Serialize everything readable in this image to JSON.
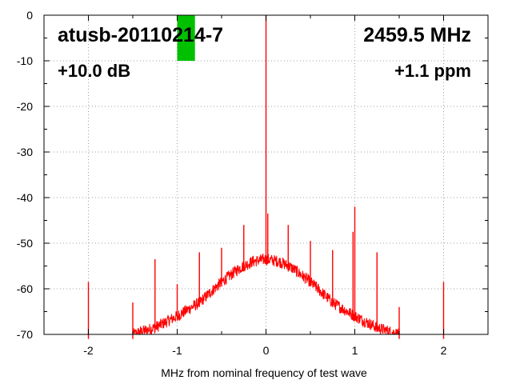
{
  "chart_data": {
    "type": "line",
    "xlabel": "MHz from nominal frequency of test wave",
    "ylabel": "",
    "xlim": [
      -2.5,
      2.5
    ],
    "ylim": [
      -70,
      0
    ],
    "x_ticks": [
      -2,
      -1,
      0,
      1,
      2
    ],
    "y_ticks": [
      0,
      -10,
      -20,
      -30,
      -40,
      -50,
      -60,
      -70
    ],
    "grid": true,
    "grid_style": "dotted",
    "series_color": "#ff0000",
    "annotations": {
      "device": "atusb-20110214-7",
      "frequency": "2459.5 MHz",
      "level": "+10.0 dB",
      "deviation": "+1.1 ppm"
    },
    "marker_box": {
      "color": "#00c000",
      "x_range": [
        -1.0,
        -0.8
      ],
      "y_range": [
        -10,
        0
      ]
    },
    "noise_floor_profile": {
      "x": [
        -1.5,
        -1.25,
        -1.0,
        -0.75,
        -0.5,
        -0.3,
        -0.15,
        0.0,
        0.15,
        0.3,
        0.5,
        0.75,
        1.0,
        1.25,
        1.5
      ],
      "y": [
        -70,
        -68.5,
        -66,
        -63,
        -58.5,
        -55.5,
        -54,
        -53.5,
        -54,
        -55.5,
        -58.5,
        -63,
        -66,
        -68.5,
        -70
      ]
    },
    "spurs": [
      {
        "x": -2.0,
        "y": -58.5
      },
      {
        "x": -1.5,
        "y": -63
      },
      {
        "x": -1.25,
        "y": -53.5
      },
      {
        "x": -1.0,
        "y": -59
      },
      {
        "x": -0.75,
        "y": -52
      },
      {
        "x": -0.5,
        "y": -51
      },
      {
        "x": -0.25,
        "y": -46
      },
      {
        "x": 0.0,
        "y": 0
      },
      {
        "x": 0.02,
        "y": -43.5
      },
      {
        "x": 0.25,
        "y": -46
      },
      {
        "x": 0.5,
        "y": -49.5
      },
      {
        "x": 0.75,
        "y": -51.5
      },
      {
        "x": 1.0,
        "y": -42
      },
      {
        "x": 0.98,
        "y": -47.5
      },
      {
        "x": 1.25,
        "y": -52
      },
      {
        "x": 1.5,
        "y": -64
      },
      {
        "x": 2.0,
        "y": -58.5
      }
    ]
  }
}
